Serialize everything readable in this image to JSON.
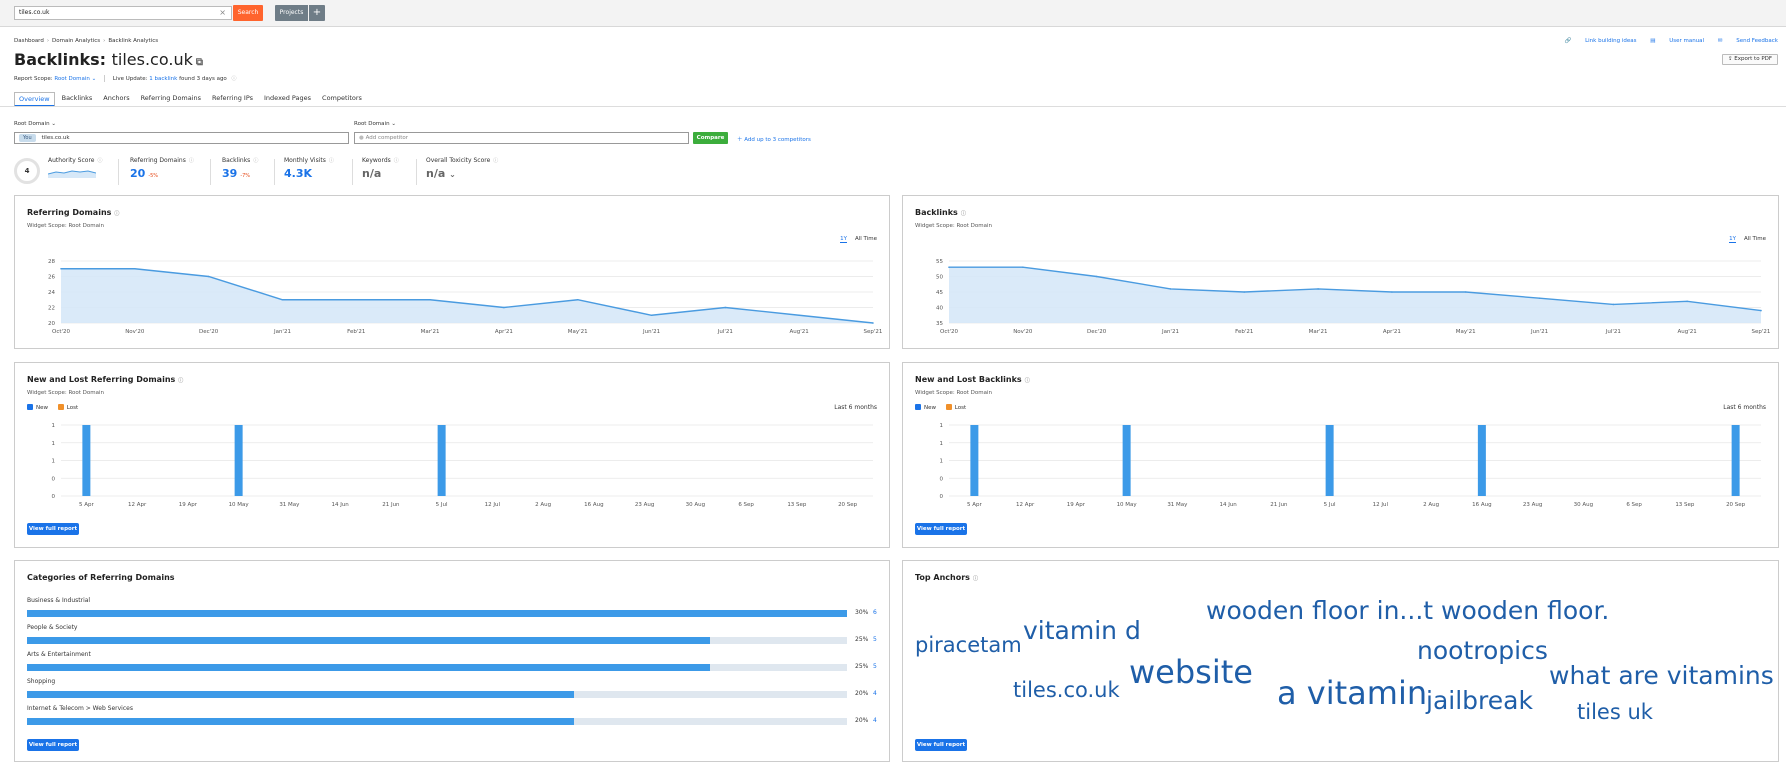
{
  "topbar": {
    "search_value": "tiles.co.uk",
    "search_label": "Search",
    "projects_label": "Projects",
    "plus_label": "+",
    "clear_label": "×"
  },
  "breadcrumb": [
    "Dashboard",
    "Domain Analytics",
    "Backlink Analytics"
  ],
  "header": {
    "title_prefix": "Backlinks:",
    "domain": "tiles.co.uk",
    "scope_label": "Report Scope:",
    "scope_value": "Root Domain",
    "live_update_label": "Live Update:",
    "live_update_link": "1 backlink",
    "live_update_suffix": "found 3 days ago",
    "top_links": [
      "Link building ideas",
      "User manual",
      "Send Feedback"
    ],
    "export_label": "Export to PDF"
  },
  "tabs": [
    "Overview",
    "Backlinks",
    "Anchors",
    "Referring Domains",
    "Referring IPs",
    "Indexed Pages",
    "Competitors"
  ],
  "compare": {
    "scope_left": "Root Domain",
    "scope_right": "Root Domain",
    "you_badge": "You",
    "you_value": "tiles.co.uk",
    "competitor_placeholder": "Add competitor",
    "compare_label": "Compare",
    "add_label": "Add up to 3 competitors"
  },
  "metrics": {
    "authority_label": "Authority Score",
    "authority_value": "4",
    "ref_domains_label": "Referring Domains",
    "ref_domains_value": "20",
    "ref_domains_delta": "-5%",
    "backlinks_label": "Backlinks",
    "backlinks_value": "39",
    "backlinks_delta": "-7%",
    "visits_label": "Monthly Visits",
    "visits_value": "4.3K",
    "keywords_label": "Keywords",
    "keywords_value": "n/a",
    "toxicity_label": "Overall Toxicity Score",
    "toxicity_value": "n/a"
  },
  "widgets": {
    "widget_scope": "Widget Scope: Root Domain",
    "range_1y": "1Y",
    "range_all": "All Time",
    "legend_new": "New",
    "legend_lost": "Lost",
    "last6": "Last 6 months",
    "view_full": "View full report",
    "ref_title": "Referring Domains",
    "bl_title": "Backlinks",
    "new_lost_ref_title": "New and Lost Referring Domains",
    "new_lost_bl_title": "New and Lost Backlinks",
    "categories_title": "Categories of Referring Domains",
    "anchors_title": "Top Anchors"
  },
  "colors": {
    "accent": "#1a73e8",
    "line": "#4a9be0",
    "area": "#d6e8f8",
    "bar": "#3c9ae8",
    "new": "#1a73e8",
    "lost": "#f0902a"
  },
  "chart_data": [
    {
      "type": "area",
      "title": "Referring Domains",
      "categories": [
        "Oct'20",
        "Nov'20",
        "Dec'20",
        "Jan'21",
        "Feb'21",
        "Mar'21",
        "Apr'21",
        "May'21",
        "Jun'21",
        "Jul'21",
        "Aug'21",
        "Sep'21"
      ],
      "values": [
        27,
        27,
        26,
        23,
        23,
        23,
        22,
        23,
        21,
        22,
        21,
        20
      ],
      "yticks": [
        20,
        22,
        24,
        26,
        28
      ],
      "ylim": [
        20,
        28
      ]
    },
    {
      "type": "area",
      "title": "Backlinks",
      "categories": [
        "Oct'20",
        "Nov'20",
        "Dec'20",
        "Jan'21",
        "Feb'21",
        "Mar'21",
        "Apr'21",
        "May'21",
        "Jun'21",
        "Jul'21",
        "Aug'21",
        "Sep'21"
      ],
      "values": [
        53,
        53,
        50,
        46,
        45,
        46,
        45,
        45,
        43,
        41,
        42,
        39
      ],
      "yticks": [
        35,
        40,
        45,
        50,
        55
      ],
      "ylim": [
        35,
        55
      ]
    },
    {
      "type": "bar",
      "title": "New and Lost Referring Domains",
      "categories": [
        "5 Apr",
        "12 Apr",
        "19 Apr",
        "10 May",
        "31 May",
        "14 Jun",
        "21 Jun",
        "5 Jul",
        "12 Jul",
        "2 Aug",
        "16 Aug",
        "23 Aug",
        "30 Aug",
        "6 Sep",
        "13 Sep",
        "20 Sep"
      ],
      "ytick_labels": [
        "0",
        "0",
        "1",
        "1",
        "1"
      ],
      "series": [
        {
          "name": "New",
          "values": [
            1,
            0,
            0,
            1,
            0,
            0,
            0,
            1,
            0,
            0,
            0,
            0,
            0,
            0,
            0,
            0
          ]
        },
        {
          "name": "Lost",
          "values": [
            0,
            0,
            0,
            0,
            0,
            0,
            0,
            0,
            0,
            0,
            0,
            0,
            0,
            0,
            0,
            0
          ]
        }
      ]
    },
    {
      "type": "bar",
      "title": "New and Lost Backlinks",
      "categories": [
        "5 Apr",
        "12 Apr",
        "19 Apr",
        "10 May",
        "31 May",
        "14 Jun",
        "21 Jun",
        "5 Jul",
        "12 Jul",
        "2 Aug",
        "16 Aug",
        "23 Aug",
        "30 Aug",
        "6 Sep",
        "13 Sep",
        "20 Sep"
      ],
      "ytick_labels": [
        "0",
        "0",
        "1",
        "1",
        "1"
      ],
      "series": [
        {
          "name": "New",
          "values": [
            1,
            0,
            0,
            1,
            0,
            0,
            0,
            1,
            0,
            0,
            1,
            0,
            0,
            0,
            0,
            1
          ]
        },
        {
          "name": "Lost",
          "values": [
            0,
            0,
            0,
            0,
            0,
            0,
            0,
            0,
            0,
            0,
            0,
            0,
            0,
            0,
            0,
            0
          ]
        }
      ]
    }
  ],
  "categories": [
    {
      "label": "Business & Industrial",
      "pct": "30%",
      "count": "6",
      "value": 30
    },
    {
      "label": "People & Society",
      "pct": "25%",
      "count": "5",
      "value": 25
    },
    {
      "label": "Arts & Entertainment",
      "pct": "25%",
      "count": "5",
      "value": 25
    },
    {
      "label": "Shopping",
      "pct": "20%",
      "count": "4",
      "value": 20
    },
    {
      "label": "Internet & Telecom > Web Services",
      "pct": "20%",
      "count": "4",
      "value": 20
    }
  ],
  "anchors": [
    {
      "text": "wooden floor in...t wooden floor.",
      "size": "big"
    },
    {
      "text": "vitamin d",
      "size": "big"
    },
    {
      "text": "piracetam",
      "size": "medium"
    },
    {
      "text": "nootropics",
      "size": "big"
    },
    {
      "text": "website",
      "size": "huge"
    },
    {
      "text": "a vitamin",
      "size": "huge"
    },
    {
      "text": "what are vitamins",
      "size": "big"
    },
    {
      "text": "tiles.co.uk",
      "size": "medium"
    },
    {
      "text": "jailbreak",
      "size": "big"
    },
    {
      "text": "tiles uk",
      "size": "medium"
    }
  ]
}
